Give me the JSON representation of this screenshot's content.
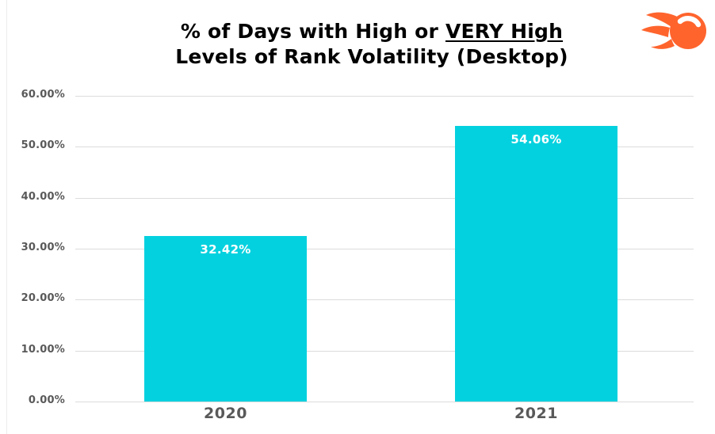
{
  "header": {
    "title_line1_prefix": "% of Days with High or ",
    "title_line1_underlined": "VERY High",
    "title_line2": "Levels of Rank Volatility (Desktop)",
    "logo_name": "semrush-flame-logo"
  },
  "colors": {
    "bar": "#04d1df",
    "grid_line": "#dcdcdc",
    "axis_text": "#595959",
    "title_text": "#000000",
    "bar_label_text": "#ffffff",
    "logo_orange": "#ff642d",
    "background": "#ffffff"
  },
  "chart_data": {
    "type": "bar",
    "title": "% of Days with High or VERY High Levels of Rank Volatility (Desktop)",
    "categories": [
      "2020",
      "2021"
    ],
    "values": [
      32.42,
      54.06
    ],
    "value_labels": [
      "32.42%",
      "54.06%"
    ],
    "yticks": [
      "60.00%",
      "50.00%",
      "40.00%",
      "30.00%",
      "20.00%",
      "10.00%",
      "0.00%"
    ],
    "ylim": [
      0,
      60
    ],
    "xlabel": "",
    "ylabel": "",
    "grid": true,
    "legend": false,
    "bar_color": "#04d1df"
  }
}
